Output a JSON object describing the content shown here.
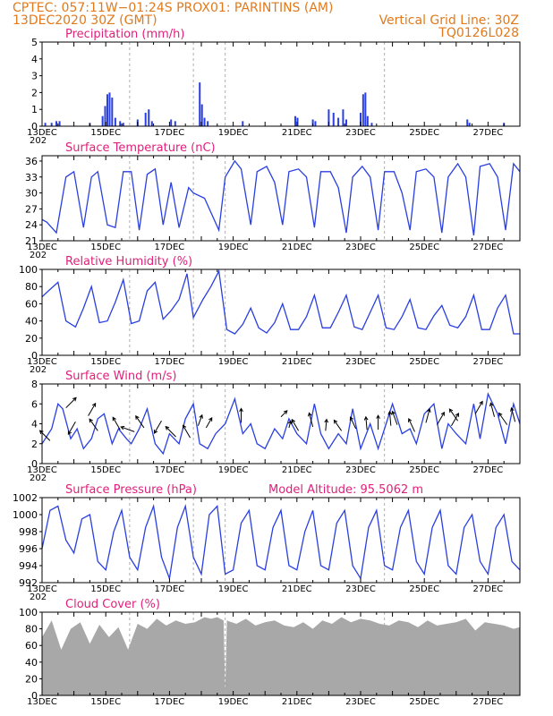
{
  "header": {
    "line1_left": "CPTEC:   057:11W−01:24S   PROX01: PARINTINS (AM)",
    "line2_left": "13DEC2020 30Z (GMT)",
    "line2_right": "Vertical Grid Line: 30Z",
    "line3_right": "TQ0126L028"
  },
  "colors": {
    "header": "#e07a1c",
    "title": "#e0207c",
    "series": "#2a3fe0",
    "cloud": "#a8a8a8"
  },
  "x_tick_labels": [
    "13DEC",
    "15DEC",
    "17DEC",
    "19DEC",
    "21DEC",
    "23DEC",
    "25DEC",
    "27DEC"
  ],
  "x_day_start": 13,
  "x_day_end": 28,
  "vertical_grid_days": [
    15.75,
    17.75,
    18.75,
    23.75
  ],
  "chart_data": [
    {
      "type": "bar",
      "title": "Precipitation (mm/h)",
      "ylim": [
        0,
        5
      ],
      "yticks": [
        0,
        1,
        2,
        3,
        4,
        5
      ],
      "x_unit": "day of December 2020",
      "bars": [
        [
          13.1,
          0.2
        ],
        [
          13.3,
          0.2
        ],
        [
          13.45,
          0.3
        ],
        [
          13.55,
          0.3
        ],
        [
          14.5,
          0.2
        ],
        [
          14.9,
          0.6
        ],
        [
          14.98,
          1.2
        ],
        [
          15.05,
          1.9
        ],
        [
          15.12,
          2.0
        ],
        [
          15.2,
          1.7
        ],
        [
          15.3,
          0.5
        ],
        [
          15.45,
          0.3
        ],
        [
          15.55,
          0.2
        ],
        [
          16.0,
          0.4
        ],
        [
          16.25,
          0.8
        ],
        [
          16.35,
          1.0
        ],
        [
          16.45,
          0.3
        ],
        [
          17.05,
          0.4
        ],
        [
          17.18,
          0.3
        ],
        [
          17.95,
          2.6
        ],
        [
          18.02,
          1.3
        ],
        [
          18.1,
          0.5
        ],
        [
          18.2,
          0.3
        ],
        [
          19.3,
          0.3
        ],
        [
          20.95,
          0.6
        ],
        [
          21.02,
          0.5
        ],
        [
          21.5,
          0.4
        ],
        [
          21.58,
          0.3
        ],
        [
          22.0,
          1.0
        ],
        [
          22.15,
          0.8
        ],
        [
          22.3,
          0.5
        ],
        [
          22.45,
          1.0
        ],
        [
          22.55,
          0.4
        ],
        [
          23.0,
          0.8
        ],
        [
          23.08,
          1.9
        ],
        [
          23.15,
          2.0
        ],
        [
          23.22,
          0.6
        ],
        [
          23.35,
          0.2
        ],
        [
          26.35,
          0.4
        ],
        [
          26.42,
          0.2
        ],
        [
          27.5,
          0.2
        ]
      ]
    },
    {
      "type": "line",
      "title": "Surface Temperature (nC)",
      "ylim": [
        21,
        37
      ],
      "yticks": [
        21,
        24,
        27,
        30,
        33,
        36
      ],
      "x": [
        13.0,
        13.15,
        13.45,
        13.75,
        14.0,
        14.3,
        14.55,
        14.75,
        15.05,
        15.3,
        15.55,
        15.8,
        16.05,
        16.3,
        16.55,
        16.8,
        17.05,
        17.3,
        17.6,
        17.75,
        18.1,
        18.55,
        18.75,
        19.05,
        19.25,
        19.55,
        19.75,
        20.05,
        20.3,
        20.55,
        20.75,
        21.05,
        21.3,
        21.55,
        21.75,
        22.05,
        22.3,
        22.55,
        22.75,
        23.05,
        23.3,
        23.55,
        23.75,
        24.05,
        24.3,
        24.55,
        24.75,
        25.05,
        25.3,
        25.55,
        25.75,
        26.05,
        26.3,
        26.55,
        26.75,
        27.05,
        27.3,
        27.55,
        27.8,
        28.0
      ],
      "y": [
        25,
        24.5,
        22.5,
        33,
        34,
        23.5,
        33,
        34,
        24,
        23.5,
        34,
        34,
        23,
        33.5,
        34.5,
        24,
        32,
        23.5,
        31,
        30,
        29,
        23,
        33,
        36,
        34.5,
        24,
        34,
        35,
        32,
        24,
        34,
        34.5,
        33,
        23.5,
        34,
        34,
        31,
        22.5,
        33,
        35,
        33,
        23,
        34,
        34,
        30,
        23,
        34,
        34.5,
        33,
        22.5,
        33,
        35.5,
        33,
        22,
        35,
        35.5,
        33,
        23,
        35.5,
        34
      ]
    },
    {
      "type": "line",
      "title": "Relative Humidity (%)",
      "ylim": [
        0,
        100
      ],
      "yticks": [
        0,
        20,
        40,
        60,
        80,
        100
      ],
      "x": [
        13.0,
        13.2,
        13.5,
        13.75,
        14.05,
        14.3,
        14.55,
        14.8,
        15.05,
        15.3,
        15.55,
        15.8,
        16.05,
        16.3,
        16.55,
        16.8,
        17.05,
        17.3,
        17.55,
        17.75,
        18.05,
        18.3,
        18.55,
        18.8,
        19.05,
        19.3,
        19.55,
        19.8,
        20.05,
        20.3,
        20.55,
        20.8,
        21.05,
        21.3,
        21.55,
        21.8,
        22.05,
        22.3,
        22.55,
        22.8,
        23.05,
        23.3,
        23.55,
        23.8,
        24.05,
        24.3,
        24.55,
        24.8,
        25.05,
        25.3,
        25.55,
        25.8,
        26.05,
        26.3,
        26.55,
        26.8,
        27.05,
        27.3,
        27.55,
        27.8,
        28.0
      ],
      "y": [
        68,
        75,
        85,
        40,
        33,
        55,
        80,
        38,
        40,
        62,
        88,
        37,
        40,
        75,
        85,
        42,
        52,
        65,
        95,
        44,
        65,
        80,
        98,
        30,
        25,
        36,
        55,
        32,
        26,
        38,
        60,
        30,
        30,
        45,
        70,
        32,
        32,
        50,
        70,
        33,
        30,
        50,
        70,
        32,
        30,
        45,
        65,
        32,
        30,
        46,
        58,
        35,
        32,
        45,
        70,
        30,
        30,
        55,
        70,
        25,
        25
      ]
    },
    {
      "type": "line",
      "title": "Surface Wind (m/s)",
      "ylim": [
        0,
        8
      ],
      "yticks": [
        0,
        2,
        4,
        6,
        8
      ],
      "x": [
        13.0,
        13.3,
        13.5,
        13.65,
        13.9,
        14.1,
        14.3,
        14.55,
        14.75,
        14.95,
        15.2,
        15.4,
        15.65,
        15.8,
        16.05,
        16.3,
        16.55,
        16.8,
        17.0,
        17.3,
        17.5,
        17.75,
        17.95,
        18.2,
        18.45,
        18.75,
        19.05,
        19.3,
        19.55,
        19.75,
        20.0,
        20.3,
        20.55,
        20.75,
        21.0,
        21.3,
        21.55,
        21.75,
        22.0,
        22.3,
        22.55,
        22.75,
        23.0,
        23.3,
        23.55,
        23.8,
        24.0,
        24.3,
        24.55,
        24.75,
        25.0,
        25.3,
        25.55,
        25.75,
        26.0,
        26.3,
        26.55,
        26.75,
        27.0,
        27.3,
        27.55,
        27.8,
        28.0
      ],
      "y": [
        2,
        3.5,
        6,
        5.5,
        2.5,
        3.5,
        1.5,
        2.5,
        4.5,
        5,
        2,
        3.5,
        2.5,
        2,
        3.5,
        5.5,
        2,
        1,
        3,
        2,
        4.5,
        6,
        2,
        1.5,
        3,
        4,
        6.5,
        3,
        4,
        2,
        1.5,
        3.5,
        2.5,
        4.5,
        3,
        2,
        6,
        3,
        1.5,
        3,
        2,
        5.5,
        1.5,
        4,
        1.5,
        4,
        6,
        3,
        3.5,
        2,
        5,
        6,
        1.5,
        4,
        3,
        2,
        6,
        2.5,
        7,
        5,
        2,
        6,
        4
      ]
    },
    {
      "type": "line",
      "title": "Surface Pressure (hPa)",
      "annotation": "Model Altitude: 95.5062  m",
      "ylim": [
        992,
        1002
      ],
      "yticks": [
        992,
        994,
        996,
        998,
        1000,
        1002
      ],
      "x": [
        13.0,
        13.25,
        13.5,
        13.75,
        14.0,
        14.25,
        14.5,
        14.75,
        15.0,
        15.25,
        15.5,
        15.75,
        16.0,
        16.25,
        16.5,
        16.75,
        17.0,
        17.25,
        17.5,
        17.75,
        18.0,
        18.25,
        18.5,
        18.75,
        19.0,
        19.25,
        19.5,
        19.75,
        20.0,
        20.25,
        20.5,
        20.75,
        21.0,
        21.25,
        21.5,
        21.75,
        22.0,
        22.25,
        22.5,
        22.75,
        23.0,
        23.25,
        23.5,
        23.75,
        24.0,
        24.25,
        24.5,
        24.75,
        25.0,
        25.25,
        25.5,
        25.75,
        26.0,
        26.25,
        26.5,
        26.75,
        27.0,
        27.25,
        27.5,
        27.75,
        28.0
      ],
      "y": [
        996,
        1000.5,
        1001,
        997,
        995.5,
        999.5,
        1000,
        994.5,
        993.5,
        998,
        1000.5,
        995,
        993.5,
        998.5,
        1001,
        995,
        992.5,
        998.5,
        1001,
        995,
        993,
        1000,
        1001,
        993,
        993.5,
        999,
        1000.5,
        994,
        993.5,
        998.5,
        1000.5,
        994,
        993.5,
        998,
        1000.5,
        994,
        993.5,
        999,
        1000.5,
        994,
        992.5,
        998.5,
        1000.5,
        994,
        993.5,
        998.5,
        1000.5,
        994.5,
        993,
        998.5,
        1000.5,
        994,
        993,
        998.5,
        1000,
        994.5,
        993,
        998.5,
        1000,
        994.5,
        993.5
      ]
    },
    {
      "type": "area",
      "title": "Cloud Cover (%)",
      "ylim": [
        0,
        100
      ],
      "yticks": [
        0,
        20,
        40,
        60,
        80,
        100
      ],
      "x": [
        13.0,
        13.3,
        13.6,
        13.9,
        14.2,
        14.5,
        14.8,
        15.1,
        15.4,
        15.7,
        16.0,
        16.3,
        16.6,
        16.9,
        17.2,
        17.5,
        17.8,
        18.1,
        18.3,
        18.5,
        18.7,
        18.75,
        18.8,
        19.1,
        19.4,
        19.7,
        20.0,
        20.3,
        20.6,
        20.9,
        21.2,
        21.5,
        21.8,
        22.1,
        22.4,
        22.7,
        23.0,
        23.3,
        23.6,
        23.9,
        24.2,
        24.5,
        24.8,
        25.1,
        25.4,
        25.7,
        26.0,
        26.3,
        26.6,
        26.9,
        27.2,
        27.5,
        27.8,
        28.0
      ],
      "y": [
        70,
        90,
        55,
        80,
        88,
        62,
        85,
        70,
        82,
        55,
        86,
        80,
        92,
        84,
        90,
        86,
        88,
        94,
        92,
        94,
        90,
        3,
        90,
        86,
        92,
        84,
        88,
        90,
        84,
        82,
        88,
        80,
        90,
        86,
        94,
        88,
        92,
        90,
        86,
        84,
        90,
        88,
        82,
        90,
        84,
        86,
        88,
        92,
        78,
        88,
        86,
        84,
        80,
        82
      ]
    }
  ],
  "wind_arrows": [
    [
      13.25,
      2.3,
      225,
      1
    ],
    [
      13.75,
      5.6,
      315,
      1
    ],
    [
      14.05,
      4.2,
      120,
      1
    ],
    [
      14.45,
      4.8,
      300,
      1
    ],
    [
      14.75,
      3.3,
      235,
      1
    ],
    [
      15.45,
      3.4,
      240,
      1
    ],
    [
      15.9,
      3.2,
      200,
      1
    ],
    [
      16.2,
      3.6,
      235,
      1
    ],
    [
      16.75,
      4.3,
      120,
      1
    ],
    [
      17.2,
      2.7,
      225,
      1
    ],
    [
      17.65,
      2.6,
      240,
      1
    ],
    [
      17.9,
      3.8,
      290,
      0.8
    ],
    [
      18.15,
      3.6,
      300,
      0.8
    ],
    [
      19.25,
      4.1,
      270,
      1
    ],
    [
      20.5,
      4.7,
      315,
      0.6
    ],
    [
      20.75,
      3.6,
      285,
      0.5
    ],
    [
      21.05,
      3.3,
      240,
      0.9
    ],
    [
      21.5,
      3.7,
      255,
      1
    ],
    [
      21.9,
      3.3,
      275,
      0.8
    ],
    [
      22.4,
      3.3,
      235,
      0.9
    ],
    [
      22.85,
      3.5,
      245,
      0.9
    ],
    [
      23.2,
      3.4,
      265,
      0.9
    ],
    [
      23.55,
      3.4,
      270,
      1
    ],
    [
      23.95,
      3.8,
      265,
      1
    ],
    [
      24.15,
      3.9,
      250,
      1
    ],
    [
      24.7,
      3.2,
      245,
      1
    ],
    [
      25.05,
      4.1,
      285,
      1
    ],
    [
      25.4,
      3.9,
      300,
      1
    ],
    [
      25.85,
      3.8,
      300,
      1
    ],
    [
      26.05,
      4.3,
      235,
      1
    ],
    [
      26.6,
      5.0,
      300,
      1
    ],
    [
      27.2,
      4.7,
      255,
      1
    ],
    [
      27.6,
      3.9,
      235,
      1
    ],
    [
      27.85,
      4.2,
      255,
      1
    ]
  ],
  "labels": {
    "wind_footer": "202"
  }
}
